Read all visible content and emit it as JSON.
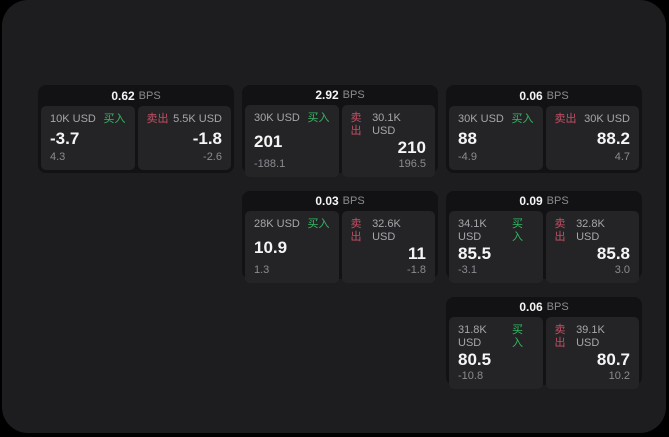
{
  "colors": {
    "page_bg": "#000000",
    "panel_bg": "#1d1d1f",
    "card_bg": "#121214",
    "tile_bg": "#242427",
    "buy_green": "#35b862",
    "sell_red": "#c44f63",
    "text_primary": "#f5f5f5",
    "text_muted": "#8b8b90"
  },
  "labels": {
    "bps": "BPS",
    "buy": "买入",
    "sell": "卖出"
  },
  "cards": [
    {
      "spread_bps": "0.62",
      "buy": {
        "notional": "10K USD",
        "price": "-3.7",
        "delta": "4.3"
      },
      "sell": {
        "notional": "5.5K USD",
        "price": "-1.8",
        "delta": "-2.6"
      }
    },
    {
      "spread_bps": "2.92",
      "buy": {
        "notional": "30K USD",
        "price": "201",
        "delta": "-188.1"
      },
      "sell": {
        "notional": "30.1K USD",
        "price": "210",
        "delta": "196.5"
      }
    },
    {
      "spread_bps": "0.06",
      "buy": {
        "notional": "30K USD",
        "price": "88",
        "delta": "-4.9"
      },
      "sell": {
        "notional": "30K USD",
        "price": "88.2",
        "delta": "4.7"
      }
    },
    {
      "spread_bps": "0.03",
      "buy": {
        "notional": "28K USD",
        "price": "10.9",
        "delta": "1.3"
      },
      "sell": {
        "notional": "32.6K USD",
        "price": "11",
        "delta": "-1.8"
      }
    },
    {
      "spread_bps": "0.09",
      "buy": {
        "notional": "34.1K USD",
        "price": "85.5",
        "delta": "-3.1"
      },
      "sell": {
        "notional": "32.8K USD",
        "price": "85.8",
        "delta": "3.0"
      }
    },
    {
      "spread_bps": "0.06",
      "buy": {
        "notional": "31.8K USD",
        "price": "80.5",
        "delta": "-10.8"
      },
      "sell": {
        "notional": "39.1K USD",
        "price": "80.7",
        "delta": "10.2"
      }
    }
  ]
}
